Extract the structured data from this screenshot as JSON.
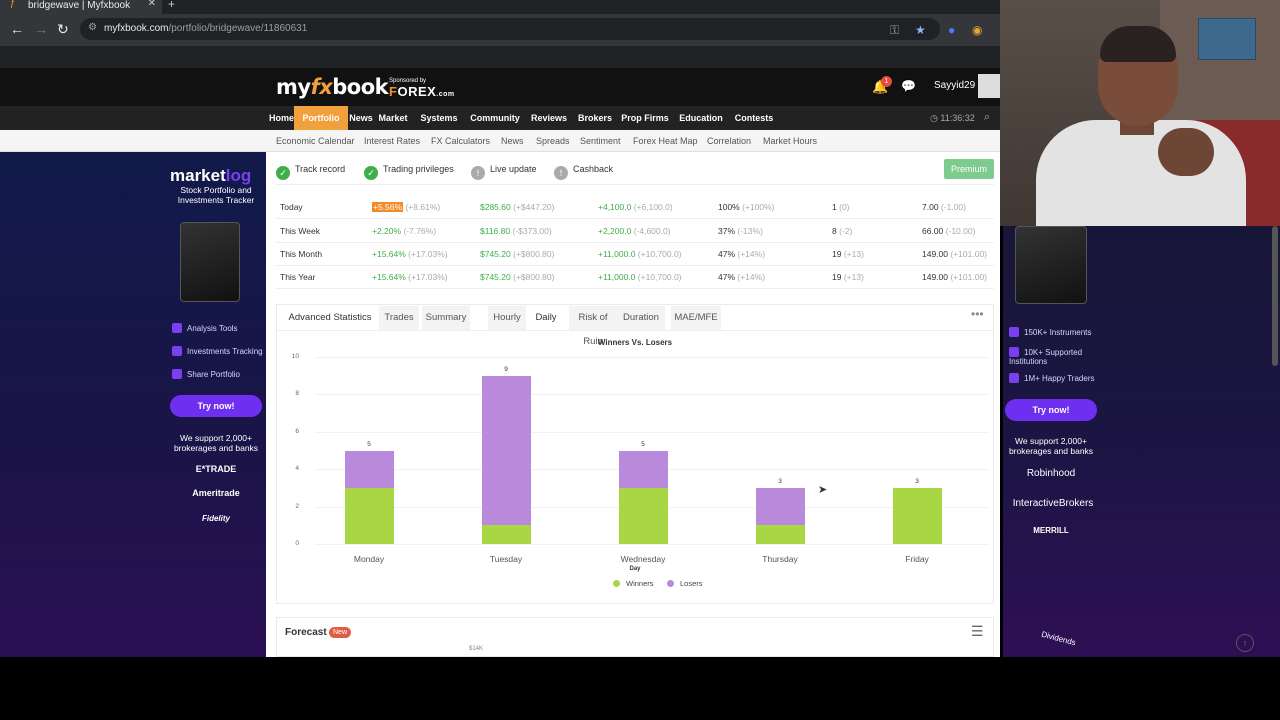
{
  "browser": {
    "tab_title": "bridgewave | Myfxbook",
    "url_host": "myfxbook.com",
    "url_path": "/portfolio/bridgewave/11860631"
  },
  "header": {
    "logo_main": "my",
    "logo_fx": "fx",
    "logo_end": "book",
    "sponsor_label": "Sponsored by",
    "sponsor_brand_a": "F",
    "sponsor_brand_b": "OREX",
    "sponsor_brand_c": ".com",
    "notification_count": "1",
    "username": "Sayyid29"
  },
  "nav": {
    "items": [
      "Home",
      "Portfolio",
      "News",
      "Market",
      "Systems",
      "Community",
      "Reviews",
      "Brokers",
      "Prop Firms",
      "Education",
      "Contests"
    ],
    "active_index": 1,
    "clock": "11:36:32"
  },
  "subnav": {
    "items": [
      "Economic Calendar",
      "Interest Rates",
      "FX Calculators",
      "News",
      "Spreads",
      "Sentiment",
      "Forex Heat Map",
      "Correlation",
      "Market Hours"
    ]
  },
  "ad_left": {
    "brand_a": "market",
    "brand_b": "log",
    "tagline": "Stock Portfolio and Investments Tracker",
    "features": [
      "Analysis Tools",
      "Investments Tracking",
      "Share Portfolio"
    ],
    "cta": "Try now!",
    "support": "We support 2,000+ brokerages and banks",
    "brokers": [
      "E*TRADE",
      "Ameritrade",
      "Fidelity"
    ]
  },
  "ad_right": {
    "features": [
      "150K+ Instruments",
      "10K+ Supported Institutions",
      "1M+ Happy Traders"
    ],
    "cta": "Try now!",
    "support": "We support 2,000+ brokerages and banks",
    "brokers": [
      "Robinhood",
      "InteractiveBrokers",
      "MERRILL"
    ],
    "dividends": "Dividends"
  },
  "status": {
    "items": [
      "Track record",
      "Trading privileges",
      "Live update",
      "Cashback"
    ],
    "premium": "Premium"
  },
  "periods": [
    {
      "label": "Today",
      "gain": "+5.56%",
      "gain_delta": "(+8.61%)",
      "profit": "$285.60",
      "profit_delta": "(+$447.20)",
      "pips": "+4,100.0",
      "pips_delta": "(+6,100.0)",
      "win": "100%",
      "win_delta": "(+100%)",
      "trades": "1",
      "trades_delta": "(0)",
      "lots": "7.00",
      "lots_delta": "(-1.00)"
    },
    {
      "label": "This Week",
      "gain": "+2.20%",
      "gain_delta": "(-7.76%)",
      "profit": "$116.80",
      "profit_delta": "(-$373.00)",
      "pips": "+2,200.0",
      "pips_delta": "(-4,600.0)",
      "win": "37%",
      "win_delta": "(-13%)",
      "trades": "8",
      "trades_delta": "(-2)",
      "lots": "66.00",
      "lots_delta": "(-10.00)"
    },
    {
      "label": "This Month",
      "gain": "+15.64%",
      "gain_delta": "(+17.03%)",
      "profit": "$745.20",
      "profit_delta": "(+$800.80)",
      "pips": "+11,000.0",
      "pips_delta": "(+10,700.0)",
      "win": "47%",
      "win_delta": "(+14%)",
      "trades": "19",
      "trades_delta": "(+13)",
      "lots": "149.00",
      "lots_delta": "(+101.00)"
    },
    {
      "label": "This Year",
      "gain": "+15.64%",
      "gain_delta": "(+17.03%)",
      "profit": "$745.20",
      "profit_delta": "(+$800.80)",
      "pips": "+11,000.0",
      "pips_delta": "(+10,700.0)",
      "win": "47%",
      "win_delta": "(+14%)",
      "trades": "19",
      "trades_delta": "(+13)",
      "lots": "149.00",
      "lots_delta": "(+101.00)"
    }
  ],
  "advanced": {
    "heading": "Advanced Statistics",
    "tabs": [
      "Trades",
      "Summary",
      "Hourly",
      "Daily",
      "Risk of Ruin",
      "Duration",
      "MAE/MFE"
    ],
    "active_tab": "Daily"
  },
  "chart_data": {
    "type": "bar",
    "stacked": true,
    "title": "Winners Vs. Losers",
    "xlabel": "Day",
    "ylabel": "",
    "categories": [
      "Monday",
      "Tuesday",
      "Wednesday",
      "Thursday",
      "Friday"
    ],
    "series": [
      {
        "name": "Winners",
        "color": "#a8d645",
        "values": [
          3,
          1,
          3,
          1,
          3
        ]
      },
      {
        "name": "Losers",
        "color": "#b989dc",
        "values": [
          2,
          8,
          2,
          2,
          0
        ]
      }
    ],
    "totals": [
      5,
      9,
      5,
      3,
      3
    ],
    "ylim": [
      0,
      10
    ],
    "yticks": [
      0,
      2,
      4,
      6,
      8,
      10
    ],
    "grid": true,
    "legend": "bottom"
  },
  "forecast": {
    "title": "Forecast",
    "badge": "New",
    "axis_fragment": "$14K"
  }
}
